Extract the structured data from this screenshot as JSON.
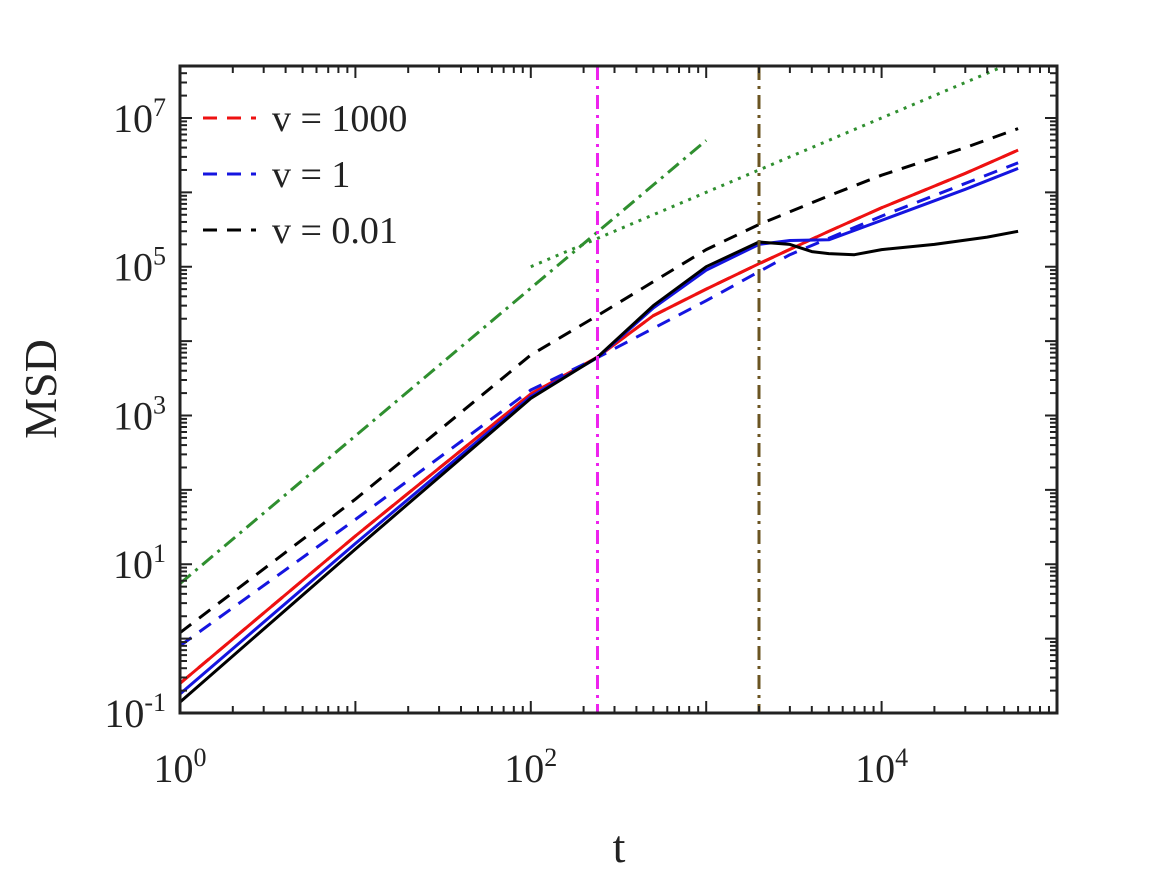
{
  "chart_data": {
    "type": "line",
    "xscale": "log",
    "yscale": "log",
    "xlabel": "t",
    "ylabel": "MSD",
    "xlim": [
      1,
      100000
    ],
    "ylim": [
      0.1,
      50000000
    ],
    "xticks": [
      {
        "base": "10",
        "exp": "0",
        "value": 1
      },
      {
        "base": "10",
        "exp": "2",
        "value": 100
      },
      {
        "base": "10",
        "exp": "4",
        "value": 10000
      }
    ],
    "yticks": [
      {
        "base": "10",
        "exp": "-1",
        "value": 0.1
      },
      {
        "base": "10",
        "exp": "1",
        "value": 10
      },
      {
        "base": "10",
        "exp": "3",
        "value": 1000
      },
      {
        "base": "10",
        "exp": "5",
        "value": 100000
      },
      {
        "base": "10",
        "exp": "7",
        "value": 10000000
      }
    ],
    "grid": false,
    "legend_position": "top-left",
    "legend": [
      {
        "label": "v = 1000",
        "color": "#ee1111",
        "dash": "dashed"
      },
      {
        "label": "v = 1",
        "color": "#1515e0",
        "dash": "dashed"
      },
      {
        "label": "v = 0.01",
        "color": "#000000",
        "dash": "dashed"
      }
    ],
    "series": [
      {
        "name": "v = 1000 (dashed)",
        "color": "#ee1111",
        "style": "dashed",
        "width": 3,
        "x": [
          1,
          10,
          100,
          240,
          500,
          1000,
          2000,
          5000,
          10000,
          30000,
          60000
        ],
        "y": [
          0.25,
          24,
          1950,
          6100,
          22000,
          50000,
          110000,
          300000,
          620000,
          1800000,
          3700000
        ]
      },
      {
        "name": "v = 1000 (solid)",
        "color": "#ee1111",
        "style": "solid",
        "width": 3,
        "x": [
          1,
          10,
          100,
          240,
          500,
          1000,
          2000,
          5000,
          10000,
          30000,
          60000
        ],
        "y": [
          0.25,
          24,
          1950,
          6100,
          22000,
          50000,
          110000,
          300000,
          620000,
          1800000,
          3700000
        ]
      },
      {
        "name": "v = 1 (dashed)",
        "color": "#1515e0",
        "style": "dashed",
        "width": 3,
        "x": [
          1,
          10,
          100,
          240,
          1000,
          3000,
          10000,
          60000
        ],
        "y": [
          0.8,
          40,
          2200,
          6000,
          35000,
          145000,
          480000,
          2500000
        ]
      },
      {
        "name": "v = 1 (solid)",
        "color": "#1515e0",
        "style": "solid",
        "width": 3,
        "x": [
          1,
          10,
          100,
          240,
          500,
          1000,
          2000,
          3000,
          5000,
          10000,
          30000,
          60000
        ],
        "y": [
          0.18,
          19,
          1800,
          6000,
          28000,
          90000,
          200000,
          225000,
          230000,
          420000,
          1100000,
          2100000
        ]
      },
      {
        "name": "v = 0.01 (dashed)",
        "color": "#000000",
        "style": "dashed",
        "width": 3,
        "x": [
          1,
          10,
          100,
          240,
          1000,
          2000,
          5000,
          10000,
          30000,
          60000
        ],
        "y": [
          1.2,
          75,
          6500,
          22000,
          170000,
          370000,
          900000,
          1700000,
          4000000,
          7200000
        ]
      },
      {
        "name": "v = 0.01 (solid)",
        "color": "#000000",
        "style": "solid",
        "width": 3,
        "x": [
          1,
          10,
          100,
          240,
          500,
          1000,
          2000,
          3000,
          4000,
          5000,
          7000,
          10000,
          20000,
          40000,
          60000
        ],
        "y": [
          0.14,
          16,
          1700,
          6100,
          30000,
          100000,
          215000,
          200000,
          160000,
          150000,
          145000,
          170000,
          200000,
          250000,
          300000
        ]
      },
      {
        "name": "slope-2 guide",
        "color": "#2f8f2f",
        "style": "dashdot",
        "width": 3,
        "x": [
          1,
          1000
        ],
        "y": [
          5.5,
          5000000
        ]
      },
      {
        "name": "slope-1 guide",
        "color": "#2f8f2f",
        "style": "dotted",
        "width": 3,
        "x": [
          100,
          60000
        ],
        "y": [
          100000,
          60000000
        ]
      }
    ],
    "vlines": [
      {
        "x": 240,
        "color": "#ee22ee",
        "style": "dashdot"
      },
      {
        "x": 2000,
        "color": "#6b5522",
        "style": "dashdot"
      }
    ]
  }
}
